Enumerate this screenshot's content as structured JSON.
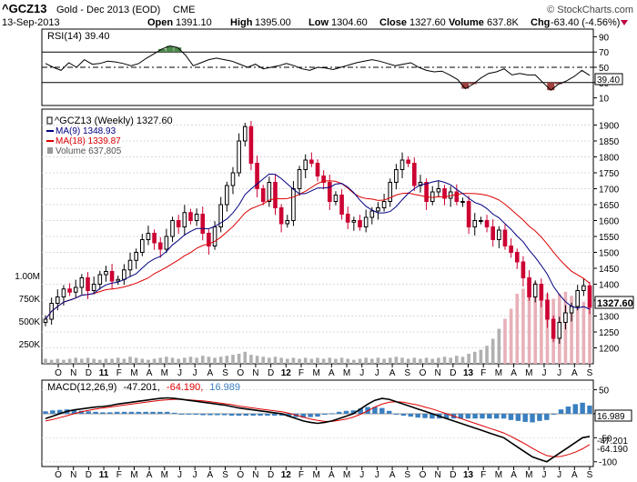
{
  "header": {
    "ticker": "^GCZ13",
    "name": "Gold - Dec 2013 (EOD)",
    "exchange": "CME",
    "date": "13-Sep-2013",
    "open_label": "Open",
    "open": "1391.10",
    "high_label": "High",
    "high": "1395.00",
    "low_label": "Low",
    "low": "1304.60",
    "close_label": "Close",
    "close": "1327.60",
    "volume_label": "Volume",
    "volume": "637.8K",
    "chg_label": "Chg",
    "chg": "-63.40 (-4.56%)",
    "watermark": "© StockCharts.com",
    "down_marker_color": "#c00040"
  },
  "chart_data": [
    {
      "type": "line",
      "name": "rsi-panel",
      "title": "RSI(14) 39.40",
      "ylim": [
        0,
        100
      ],
      "y_ticks": [
        "90",
        "70",
        "50",
        "30",
        "10"
      ],
      "reference_lines": [
        70,
        50,
        30
      ],
      "current_label": "39.40",
      "series": [
        {
          "name": "RSI(14)",
          "values": [
            55,
            50,
            46,
            56,
            50,
            60,
            54,
            55,
            58,
            57,
            55,
            52,
            55,
            62,
            68,
            74,
            78,
            76,
            66,
            52,
            56,
            60,
            62,
            60,
            58,
            54,
            50,
            54,
            48,
            50,
            52,
            55,
            52,
            48,
            46,
            50,
            49,
            47,
            50,
            53,
            56,
            58,
            60,
            58,
            55,
            52,
            54,
            56,
            50,
            46,
            44,
            45,
            40,
            34,
            22,
            28,
            36,
            42,
            44,
            48,
            40,
            42,
            40,
            40,
            30,
            20,
            28,
            32,
            38,
            46,
            39.4
          ]
        }
      ]
    },
    {
      "type": "candlestick",
      "name": "price-panel",
      "title": "^GCZ13 (Weekly) 1327.60",
      "ylim": [
        1150,
        1950
      ],
      "y_ticks": [
        "1900",
        "1850",
        "1800",
        "1750",
        "1700",
        "1650",
        "1600",
        "1550",
        "1500",
        "1450",
        "1400",
        "1350",
        "1300",
        "1250",
        "1200"
      ],
      "volume_ticks": [
        "1.00M",
        "750K",
        "500K",
        "250K"
      ],
      "current_price_label": "1327.60",
      "legend": [
        {
          "label": "^GCZ13 (Weekly) 1327.60",
          "color": "#000000"
        },
        {
          "label": "MA(9) 1348.93",
          "color": "#000080"
        },
        {
          "label": "MA(18) 1339.87",
          "color": "#dd0000"
        },
        {
          "label": "Volume 637,805",
          "color": "#808080"
        }
      ],
      "close": [
        1290,
        1340,
        1360,
        1385,
        1375,
        1390,
        1420,
        1380,
        1400,
        1430,
        1440,
        1410,
        1415,
        1445,
        1475,
        1500,
        1540,
        1560,
        1530,
        1510,
        1550,
        1600,
        1580,
        1625,
        1600,
        1620,
        1560,
        1520,
        1580,
        1650,
        1710,
        1750,
        1850,
        1895,
        1780,
        1700,
        1660,
        1720,
        1640,
        1590,
        1600,
        1700,
        1760,
        1790,
        1780,
        1740,
        1720,
        1660,
        1680,
        1620,
        1595,
        1600,
        1580,
        1610,
        1630,
        1640,
        1660,
        1720,
        1760,
        1790,
        1780,
        1710,
        1720,
        1660,
        1690,
        1700,
        1670,
        1690,
        1660,
        1660,
        1580,
        1600,
        1600,
        1580,
        1540,
        1570,
        1520,
        1500,
        1470,
        1420,
        1360,
        1400,
        1350,
        1290,
        1230,
        1280,
        1310,
        1330,
        1380,
        1395,
        1327.6
      ],
      "volume_relative": [
        0.05,
        0.04,
        0.05,
        0.04,
        0.05,
        0.06,
        0.05,
        0.06,
        0.05,
        0.04,
        0.05,
        0.05,
        0.06,
        0.05,
        0.07,
        0.06,
        0.05,
        0.04,
        0.05,
        0.06,
        0.07,
        0.06,
        0.05,
        0.06,
        0.07,
        0.06,
        0.08,
        0.07,
        0.06,
        0.07,
        0.08,
        0.09,
        0.1,
        0.12,
        0.09,
        0.08,
        0.07,
        0.06,
        0.07,
        0.06,
        0.05,
        0.06,
        0.05,
        0.06,
        0.05,
        0.06,
        0.05,
        0.06,
        0.05,
        0.06,
        0.05,
        0.04,
        0.05,
        0.06,
        0.05,
        0.06,
        0.05,
        0.06,
        0.07,
        0.06,
        0.05,
        0.06,
        0.05,
        0.06,
        0.05,
        0.06,
        0.07,
        0.06,
        0.08,
        0.07,
        0.1,
        0.12,
        0.14,
        0.18,
        0.25,
        0.35,
        0.45,
        0.55,
        0.7,
        0.75,
        0.8,
        0.82,
        0.78,
        0.7,
        0.65,
        0.7,
        0.72,
        0.68,
        0.64,
        0.62,
        0.6
      ]
    },
    {
      "type": "line",
      "name": "macd-panel",
      "title": "MACD(12,26,9) -47.201, -64.190, 16.989",
      "title_parts": {
        "prefix": "MACD(12,26,9)",
        "macd": "-47.201,",
        "signal": "-64.190,",
        "hist": "16.989"
      },
      "ylim": [
        -110,
        70
      ],
      "y_ticks": [
        "50",
        "0",
        "-50",
        "-100"
      ],
      "right_labels": [
        "16.989",
        "-47.201",
        "-64.190"
      ],
      "series": [
        {
          "name": "MACD",
          "values": [
            -10,
            -5,
            0,
            5,
            8,
            10,
            12,
            14,
            15,
            17,
            20,
            22,
            24,
            26,
            28,
            30,
            32,
            33,
            32,
            30,
            28,
            26,
            24,
            22,
            20,
            18,
            15,
            12,
            10,
            8,
            6,
            4,
            2,
            0,
            -5,
            -10,
            -15,
            -18,
            -20,
            -18,
            -15,
            -10,
            -5,
            0,
            10,
            20,
            28,
            32,
            30,
            25,
            20,
            15,
            10,
            5,
            0,
            -5,
            -10,
            -15,
            -20,
            -25,
            -30,
            -35,
            -40,
            -45,
            -50,
            -60,
            -70,
            -80,
            -90,
            -95,
            -100,
            -90,
            -80,
            -70,
            -60,
            -50,
            -47.2
          ]
        },
        {
          "name": "Signal",
          "values": [
            -15,
            -12,
            -8,
            -4,
            0,
            4,
            7,
            10,
            12,
            14,
            16,
            18,
            20,
            22,
            24,
            26,
            28,
            29,
            30,
            30,
            29,
            28,
            27,
            25,
            23,
            21,
            19,
            16,
            14,
            12,
            10,
            8,
            6,
            4,
            1,
            -3,
            -7,
            -11,
            -14,
            -16,
            -16,
            -14,
            -11,
            -7,
            -1,
            6,
            14,
            20,
            24,
            25,
            24,
            21,
            18,
            14,
            10,
            5,
            0,
            -5,
            -10,
            -15,
            -20,
            -25,
            -30,
            -35,
            -40,
            -47,
            -55,
            -63,
            -72,
            -80,
            -87,
            -90,
            -89,
            -85,
            -80,
            -73,
            -64.19
          ]
        }
      ]
    }
  ],
  "x_axis_labels": [
    "O",
    "N",
    "D",
    "11",
    "F",
    "M",
    "A",
    "M",
    "J",
    "J",
    "A",
    "S",
    "O",
    "N",
    "D",
    "12",
    "F",
    "M",
    "A",
    "M",
    "J",
    "J",
    "A",
    "S",
    "O",
    "N",
    "D",
    "13",
    "F",
    "M",
    "A",
    "M",
    "J",
    "J",
    "A",
    "S"
  ],
  "colors": {
    "up": "#000000",
    "down": "#cc0033",
    "ma9": "#000080",
    "ma18": "#dd0000",
    "volume": "#b0b0b0",
    "rsi_fill_high": "#4a8a4a",
    "rsi_fill_low": "#a04040",
    "macd_hist": "#3a7fc0"
  }
}
